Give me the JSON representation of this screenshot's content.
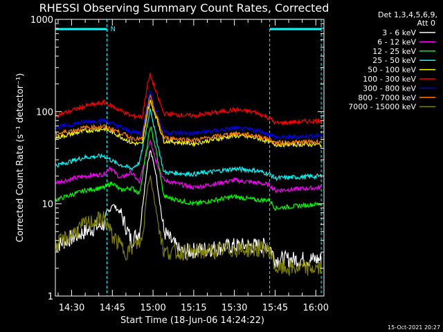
{
  "chart_data": {
    "type": "line",
    "title": "RHESSI Observing Summary Count Rates, Corrected",
    "ylabel": "Corrected Count Rate (s⁻¹ detector⁻¹)",
    "xlabel": "Start Time (18-Jun-06 14:24:22)",
    "y_scale": "log",
    "ylim": [
      1,
      1000
    ],
    "y_ticks": [
      1,
      10,
      100,
      1000
    ],
    "y_tick_labels": [
      "1",
      "10",
      "100",
      "1000"
    ],
    "x_range_minutes": [
      "14:24",
      "16:03"
    ],
    "x_ticks": [
      "14:30",
      "14:45",
      "15:00",
      "15:15",
      "15:30",
      "15:45",
      "16:00"
    ],
    "legend_header": [
      "Det 1,3,4,5,6,9,",
      "Att 0"
    ],
    "legend_placement": "right",
    "timestamp": "15-Oct-2021 20:27",
    "night_marker": "N",
    "night_intervals": [
      [
        "14:24",
        "14:43"
      ],
      [
        "15:43",
        "16:02"
      ]
    ],
    "series": [
      {
        "name": "3 - 6 keV",
        "color": "#ffffff",
        "points": [
          [
            "14:24",
            3.5
          ],
          [
            "14:35",
            5
          ],
          [
            "14:42",
            6
          ],
          [
            "14:45",
            10
          ],
          [
            "14:48",
            8
          ],
          [
            "14:52",
            4
          ],
          [
            "14:55",
            5
          ],
          [
            "14:58",
            28
          ],
          [
            "14:59",
            38
          ],
          [
            "15:01",
            22
          ],
          [
            "15:04",
            5
          ],
          [
            "15:10",
            3
          ],
          [
            "15:30",
            3.5
          ],
          [
            "15:43",
            3.5
          ],
          [
            "15:45",
            2.5
          ],
          [
            "16:02",
            2.5
          ]
        ]
      },
      {
        "name": "6 - 12 keV",
        "color": "#ff00ff",
        "points": [
          [
            "14:24",
            17
          ],
          [
            "14:35",
            20
          ],
          [
            "14:42",
            21
          ],
          [
            "14:44",
            25
          ],
          [
            "14:48",
            19
          ],
          [
            "14:52",
            22
          ],
          [
            "14:55",
            17
          ],
          [
            "14:58",
            40
          ],
          [
            "14:59",
            50
          ],
          [
            "15:01",
            30
          ],
          [
            "15:04",
            18
          ],
          [
            "15:15",
            15
          ],
          [
            "15:30",
            18
          ],
          [
            "15:38",
            17
          ],
          [
            "15:43",
            16
          ],
          [
            "15:45",
            14
          ],
          [
            "16:02",
            15
          ]
        ]
      },
      {
        "name": "12 - 25 keV",
        "color": "#00ff00",
        "points": [
          [
            "14:24",
            11
          ],
          [
            "14:35",
            14
          ],
          [
            "14:42",
            15
          ],
          [
            "14:45",
            17
          ],
          [
            "14:48",
            14
          ],
          [
            "14:52",
            15
          ],
          [
            "14:55",
            13
          ],
          [
            "14:58",
            45
          ],
          [
            "14:59",
            70
          ],
          [
            "15:01",
            40
          ],
          [
            "15:04",
            12
          ],
          [
            "15:15",
            10
          ],
          [
            "15:30",
            12
          ],
          [
            "15:38",
            11
          ],
          [
            "15:43",
            11
          ],
          [
            "15:45",
            9
          ],
          [
            "16:02",
            10
          ]
        ]
      },
      {
        "name": "25 - 50 keV",
        "color": "#00ffff",
        "points": [
          [
            "14:24",
            26
          ],
          [
            "14:35",
            32
          ],
          [
            "14:42",
            33
          ],
          [
            "14:46",
            28
          ],
          [
            "14:52",
            24
          ],
          [
            "14:55",
            28
          ],
          [
            "14:58",
            75
          ],
          [
            "14:59",
            110
          ],
          [
            "15:01",
            55
          ],
          [
            "15:04",
            22
          ],
          [
            "15:15",
            21
          ],
          [
            "15:30",
            24
          ],
          [
            "15:38",
            23
          ],
          [
            "15:43",
            21
          ],
          [
            "15:45",
            19
          ],
          [
            "16:02",
            20
          ]
        ]
      },
      {
        "name": "50 - 100 keV",
        "color": "#ffff00",
        "points": [
          [
            "14:24",
            52
          ],
          [
            "14:35",
            62
          ],
          [
            "14:42",
            65
          ],
          [
            "14:46",
            58
          ],
          [
            "14:52",
            46
          ],
          [
            "14:56",
            44
          ],
          [
            "14:58",
            100
          ],
          [
            "14:59",
            130
          ],
          [
            "15:01",
            90
          ],
          [
            "15:04",
            48
          ],
          [
            "15:15",
            45
          ],
          [
            "15:30",
            55
          ],
          [
            "15:38",
            52
          ],
          [
            "15:43",
            47
          ],
          [
            "15:45",
            44
          ],
          [
            "16:02",
            44
          ]
        ]
      },
      {
        "name": "100 - 300 keV",
        "color": "#ff0000",
        "points": [
          [
            "14:24",
            90
          ],
          [
            "14:35",
            115
          ],
          [
            "14:42",
            125
          ],
          [
            "14:46",
            110
          ],
          [
            "14:52",
            90
          ],
          [
            "14:56",
            88
          ],
          [
            "14:58",
            200
          ],
          [
            "14:59",
            250
          ],
          [
            "15:01",
            165
          ],
          [
            "15:04",
            95
          ],
          [
            "15:15",
            90
          ],
          [
            "15:30",
            105
          ],
          [
            "15:38",
            98
          ],
          [
            "15:43",
            85
          ],
          [
            "15:45",
            75
          ],
          [
            "16:02",
            80
          ]
        ]
      },
      {
        "name": "300 - 800 keV",
        "color": "#0000ff",
        "points": [
          [
            "14:24",
            67
          ],
          [
            "14:35",
            78
          ],
          [
            "14:42",
            80
          ],
          [
            "14:46",
            72
          ],
          [
            "14:52",
            60
          ],
          [
            "14:56",
            58
          ],
          [
            "14:58",
            130
          ],
          [
            "14:59",
            170
          ],
          [
            "15:01",
            105
          ],
          [
            "15:04",
            60
          ],
          [
            "15:15",
            58
          ],
          [
            "15:30",
            66
          ],
          [
            "15:38",
            63
          ],
          [
            "15:43",
            57
          ],
          [
            "15:45",
            52
          ],
          [
            "16:02",
            55
          ]
        ]
      },
      {
        "name": "800 - 7000 keV",
        "color": "#ff8000",
        "points": [
          [
            "14:24",
            57
          ],
          [
            "14:35",
            67
          ],
          [
            "14:42",
            69
          ],
          [
            "14:46",
            63
          ],
          [
            "14:52",
            52
          ],
          [
            "14:56",
            50
          ],
          [
            "14:58",
            115
          ],
          [
            "14:59",
            145
          ],
          [
            "15:01",
            95
          ],
          [
            "15:04",
            52
          ],
          [
            "15:15",
            49
          ],
          [
            "15:30",
            58
          ],
          [
            "15:38",
            55
          ],
          [
            "15:43",
            50
          ],
          [
            "15:45",
            46
          ],
          [
            "16:02",
            47
          ]
        ]
      },
      {
        "name": "7000 - 15000 keV",
        "color": "#808000",
        "points": [
          [
            "14:24",
            3.5
          ],
          [
            "14:35",
            6
          ],
          [
            "14:42",
            7
          ],
          [
            "14:45",
            4.5
          ],
          [
            "14:50",
            3
          ],
          [
            "14:56",
            4
          ],
          [
            "14:58",
            16
          ],
          [
            "14:59",
            20
          ],
          [
            "15:01",
            9
          ],
          [
            "15:04",
            3
          ],
          [
            "15:15",
            3
          ],
          [
            "15:30",
            3.2
          ],
          [
            "15:43",
            3.2
          ],
          [
            "15:45",
            2
          ],
          [
            "16:02",
            2
          ]
        ]
      }
    ]
  }
}
